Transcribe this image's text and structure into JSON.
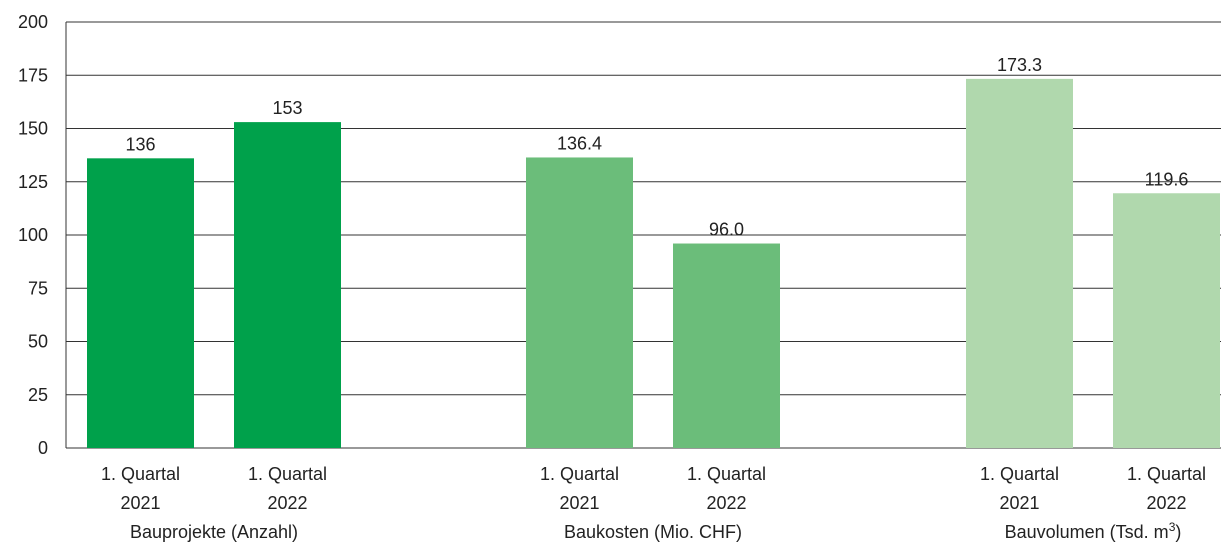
{
  "chart_data": {
    "type": "bar",
    "ylim": [
      0,
      200
    ],
    "yticks": [
      0,
      25,
      50,
      75,
      100,
      125,
      150,
      175,
      200
    ],
    "grid": true,
    "groups": [
      {
        "label": "Bauprojekte (Anzahl)",
        "color": "#00a14b",
        "bars": [
          {
            "line1": "1. Quartal",
            "line2": "2021",
            "value": 136,
            "value_label": "136"
          },
          {
            "line1": "1. Quartal",
            "line2": "2022",
            "value": 153,
            "value_label": "153"
          }
        ]
      },
      {
        "label": "Baukosten (Mio. CHF)",
        "color": "#6bbd7a",
        "bars": [
          {
            "line1": "1. Quartal",
            "line2": "2021",
            "value": 136.4,
            "value_label": "136.4"
          },
          {
            "line1": "1. Quartal",
            "line2": "2022",
            "value": 96.0,
            "value_label": "96.0"
          }
        ]
      },
      {
        "label": "Bauvolumen (Tsd. m",
        "label_sup": "3",
        "label_tail": ")",
        "color": "#b0d8ad",
        "bars": [
          {
            "line1": "1. Quartal",
            "line2": "2021",
            "value": 173.3,
            "value_label": "173.3"
          },
          {
            "line1": "1. Quartal",
            "line2": "2022",
            "value": 119.6,
            "value_label": "119.6"
          }
        ]
      }
    ]
  }
}
